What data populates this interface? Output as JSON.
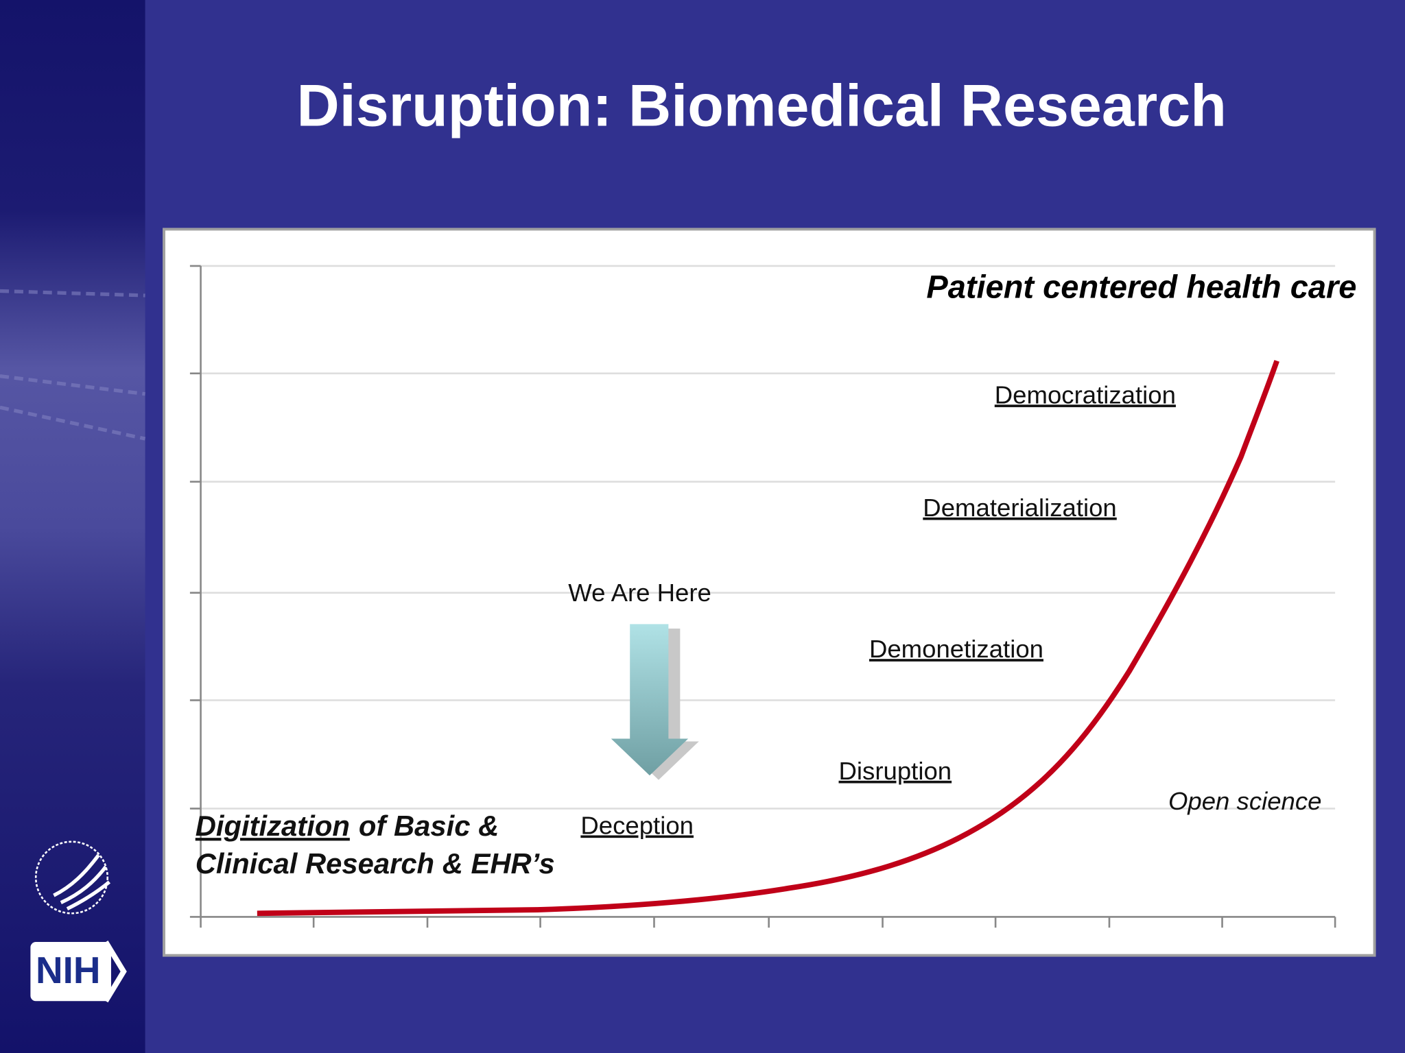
{
  "title": "Disruption: Biomedical Research",
  "top_label": "Patient centered health care",
  "stages": [
    "Democratization",
    "Dematerialization",
    "Demonetization",
    "Disruption",
    "Deception"
  ],
  "we_are_here": "We Are Here",
  "open_science": "Open science",
  "digitization": {
    "underlined": "Digitization",
    "rest": "of Basic &",
    "line2": "Clinical Research & EHR’s"
  },
  "logo": "NIH"
}
